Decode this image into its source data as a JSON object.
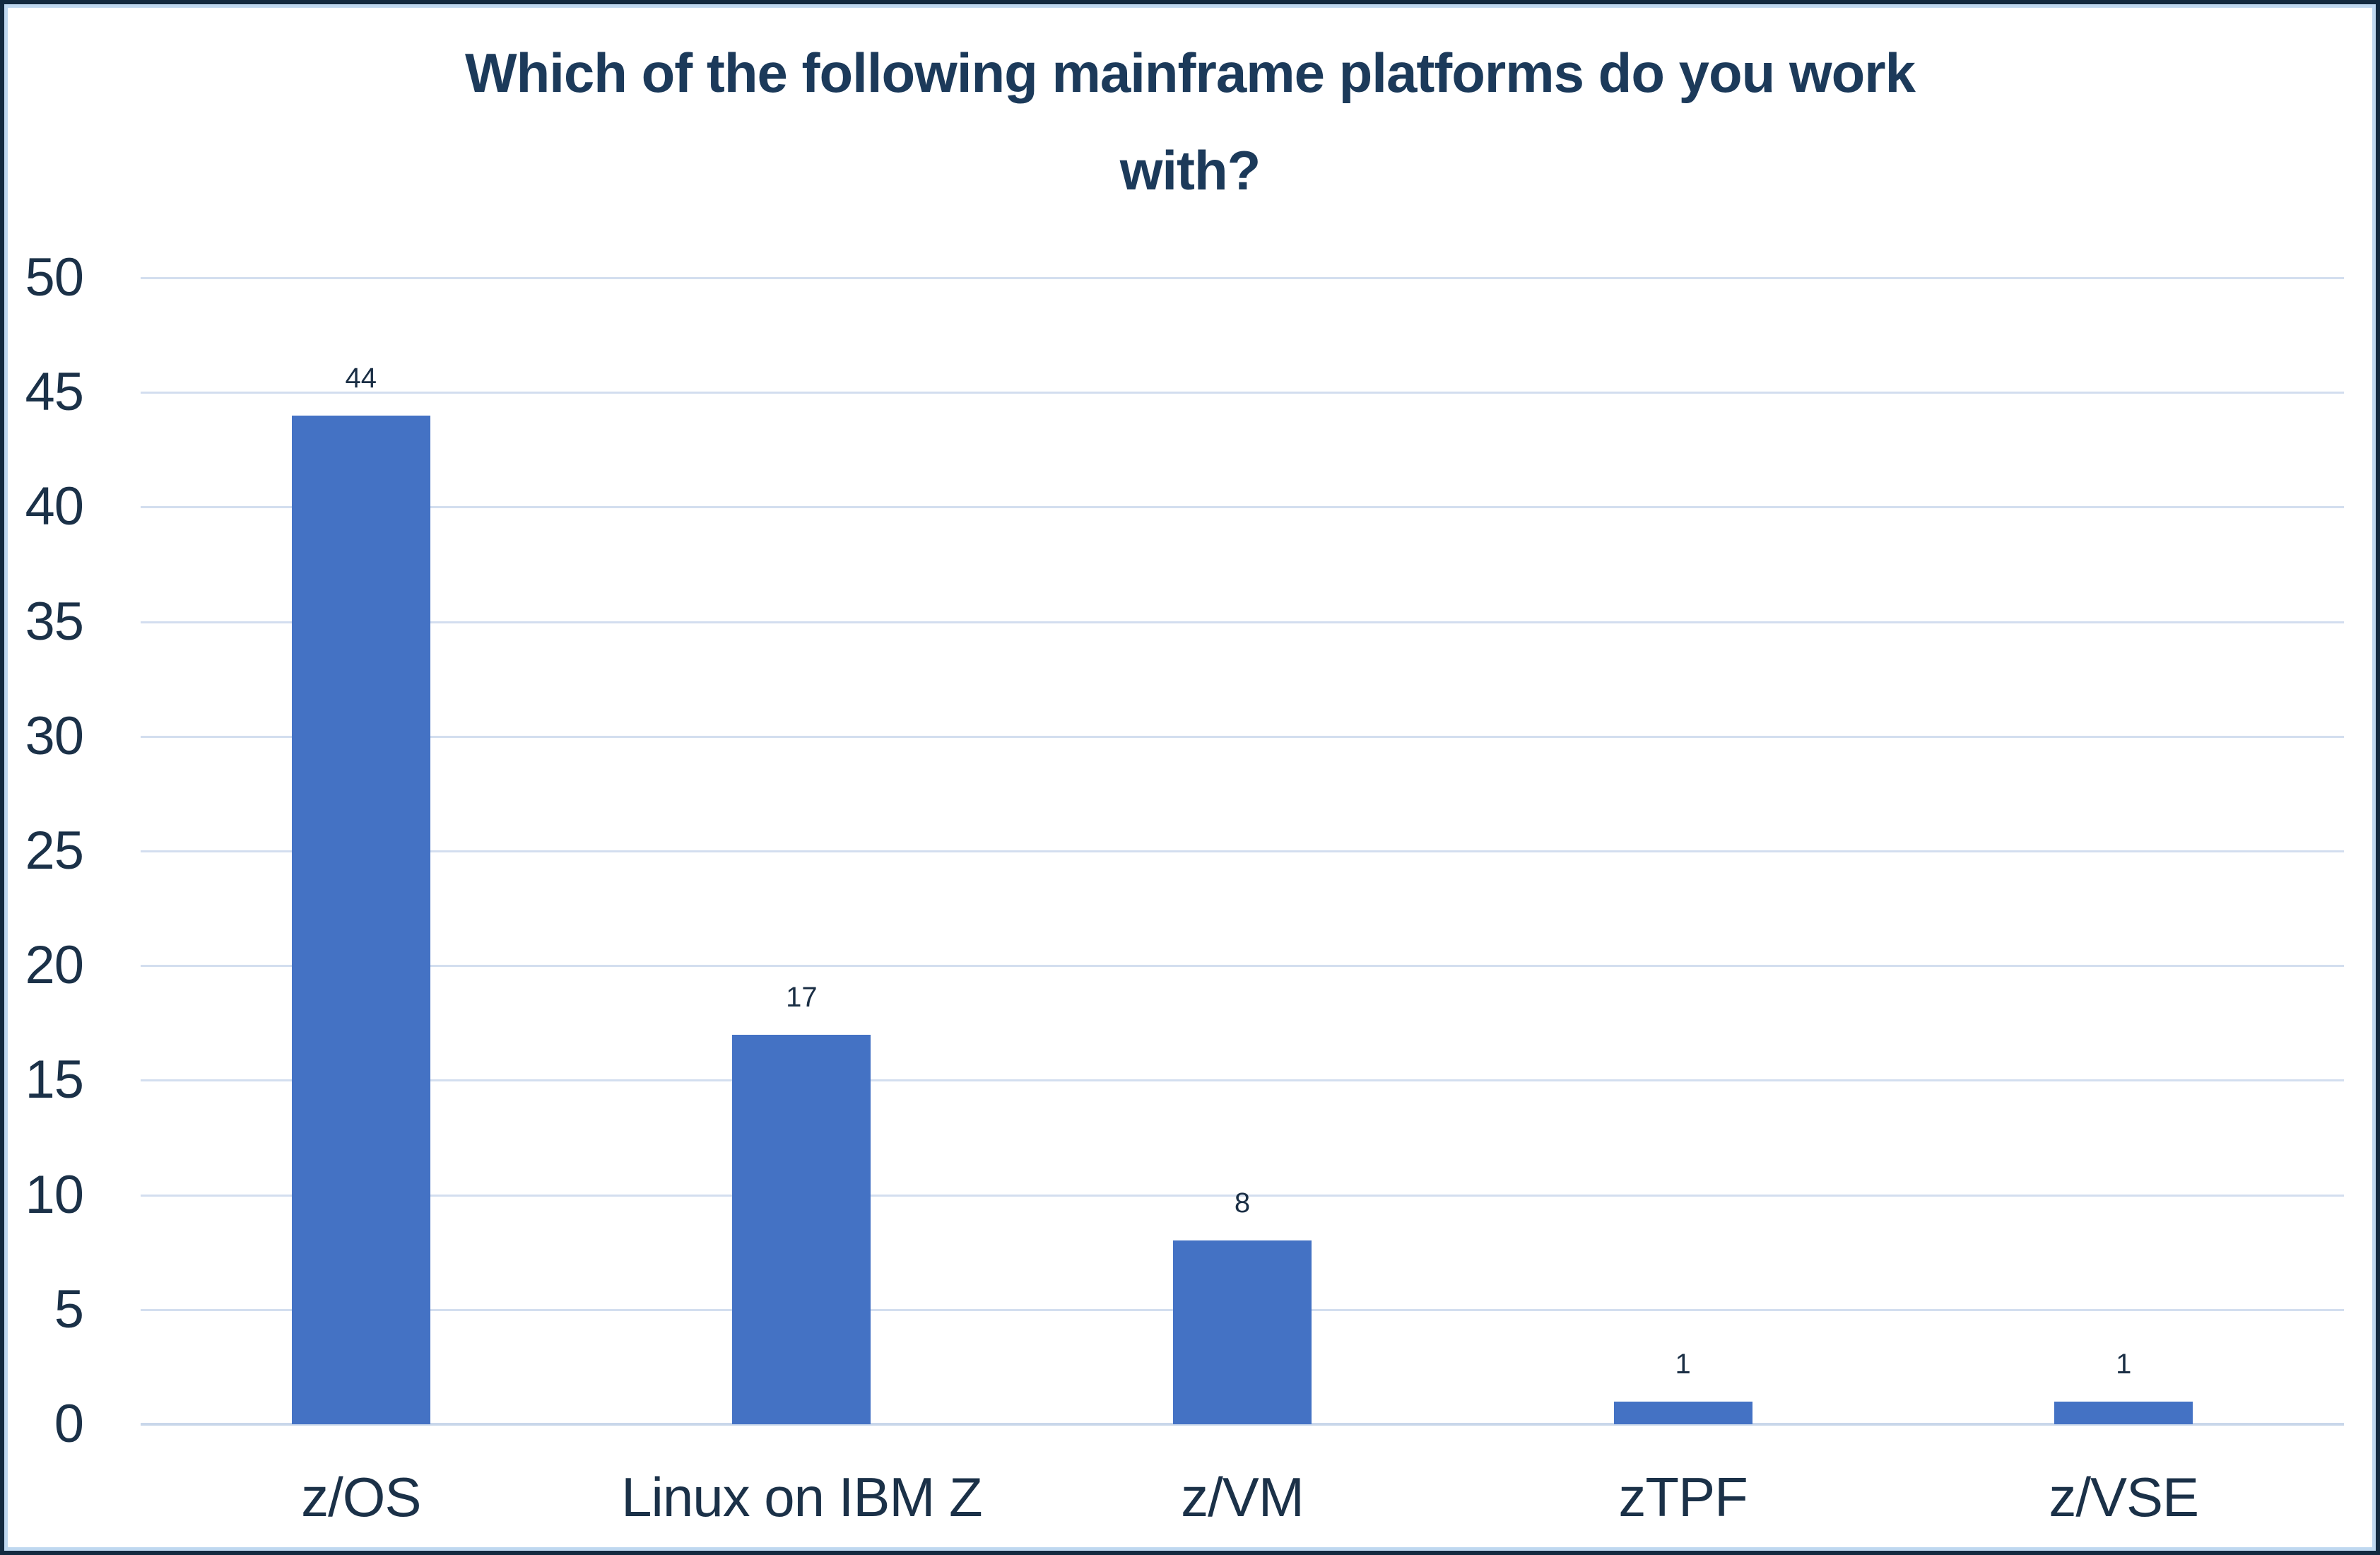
{
  "chart_data": {
    "type": "bar",
    "title": "Which of the following mainframe platforms do you work with?",
    "title_lines": [
      "Which of the following mainframe platforms do you work",
      "with?"
    ],
    "categories": [
      "z/OS",
      "Linux on IBM Z",
      "z/VM",
      "zTPF",
      "z/VSE"
    ],
    "values": [
      44,
      17,
      8,
      1,
      1
    ],
    "data_labels": [
      "44",
      "17",
      "8",
      "1",
      "1"
    ],
    "xlabel": "",
    "ylabel": "",
    "ylim": [
      0,
      50
    ],
    "yticks": [
      0,
      5,
      10,
      15,
      20,
      25,
      30,
      35,
      40,
      45,
      50
    ],
    "grid": true,
    "legend": false,
    "layout_hints": {
      "gridlines": "horizontal only, light blue",
      "value_labels": "above each bar",
      "legend_position": "none"
    },
    "colors": {
      "bar": "#4472C4",
      "title_text": "#1C3A5A",
      "axis_text": "#1B3148",
      "value_label_text": "#1B2F45",
      "gridline": "#D3DEEF",
      "baseline": "#C9D7EA",
      "border_outer": "#132A40",
      "border_inner": "#BFD8F0",
      "background": "#FFFFFF"
    }
  }
}
